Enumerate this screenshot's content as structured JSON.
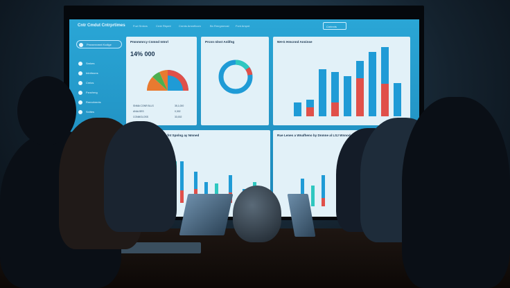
{
  "dashboard": {
    "title": "Cntr Cmdut Cntrprtimes",
    "nav": [
      "Fuvl Srnkvs",
      "Crntr Rkpmt",
      "Cnrnts Amnrflcom",
      "Bn Rmrgmmosl",
      "Fvnt Ampnt"
    ],
    "nav_button": "Cmtnnts",
    "sidebar": [
      "Pmvnmnmnt Kvdlge",
      "Srnkes",
      "Intnfmons",
      "Cmlos",
      "Fsnchrng",
      "Rmnohmnts",
      "Snlltes"
    ],
    "panel1": {
      "title": "Pmnmmrcy Cnmnd Intnrl",
      "kpi": "14% 000",
      "legend": [
        {
          "label": "SNMA CONR BLLS",
          "value": "35,1,000"
        },
        {
          "label": "ANALSES",
          "value": "0,302"
        },
        {
          "label": "CONMOLOSS",
          "value": "33,002"
        }
      ]
    },
    "panel2": {
      "title": "Prcnn nlnst Anlifng"
    },
    "panel3": {
      "title": "NH-G Hmcnnd Anninse"
    },
    "panel4": {
      "title": "Fu Cfhed Cor fnt Spnlng ay Nmned"
    },
    "panel5": {
      "title": "Rue Lenes a Wnafheno by Dnmne al LSJ Wnnod."
    }
  },
  "colors": {
    "screen": "#2aa6d6",
    "blue": "#1f9bd6",
    "red": "#e0504a",
    "teal": "#2fc7c0",
    "orange": "#e87a30",
    "green": "#4caf50"
  },
  "icons": [
    "chart-icon",
    "circle-icon"
  ]
}
